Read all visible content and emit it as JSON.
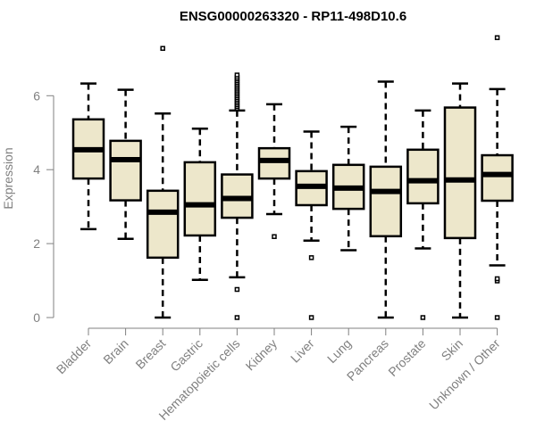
{
  "chart_data": {
    "type": "box",
    "title": "ENSG00000263320 - RP11-498D10.6",
    "xlabel": "",
    "ylabel": "Expression",
    "ylim": [
      0,
      7.6
    ],
    "yticks": [
      "0",
      "2",
      "4",
      "6"
    ],
    "box_fill": "#EDE7CB",
    "categories": [
      "Bladder",
      "Brain",
      "Breast",
      "Gastric",
      "Hematopoietic cells",
      "Kidney",
      "Liver",
      "Lung",
      "Pancreas",
      "Prostate",
      "Skin",
      "Unknown / Other"
    ],
    "boxes": [
      {
        "min": 2.39,
        "q1": 3.76,
        "median": 4.54,
        "q3": 5.36,
        "max": 6.33,
        "outliers": []
      },
      {
        "min": 2.13,
        "q1": 3.17,
        "median": 4.27,
        "q3": 4.78,
        "max": 6.16,
        "outliers": []
      },
      {
        "min": 0,
        "q1": 1.62,
        "median": 2.85,
        "q3": 3.43,
        "max": 5.52,
        "outliers": [
          7.28
        ]
      },
      {
        "min": 1.02,
        "q1": 2.22,
        "median": 3.05,
        "q3": 4.2,
        "max": 5.11,
        "outliers": []
      },
      {
        "min": 1.09,
        "q1": 2.7,
        "median": 3.22,
        "q3": 3.87,
        "max": 5.6,
        "outliers": [
          0,
          0.76,
          5.65,
          5.7,
          5.75,
          5.8,
          5.85,
          5.9,
          5.95,
          6.0,
          6.05,
          6.1,
          6.15,
          6.2,
          6.25,
          6.3,
          6.35,
          6.4,
          6.45,
          6.5,
          6.56
        ]
      },
      {
        "min": 2.8,
        "q1": 3.76,
        "median": 4.25,
        "q3": 4.58,
        "max": 5.77,
        "outliers": [
          2.19
        ]
      },
      {
        "min": 2.08,
        "q1": 3.04,
        "median": 3.55,
        "q3": 3.96,
        "max": 5.03,
        "outliers": [
          0,
          1.62
        ]
      },
      {
        "min": 1.82,
        "q1": 2.94,
        "median": 3.5,
        "q3": 4.13,
        "max": 5.16,
        "outliers": []
      },
      {
        "min": 0,
        "q1": 2.2,
        "median": 3.41,
        "q3": 4.08,
        "max": 6.38,
        "outliers": []
      },
      {
        "min": 1.87,
        "q1": 3.09,
        "median": 3.7,
        "q3": 4.54,
        "max": 5.6,
        "outliers": [
          0
        ]
      },
      {
        "min": 0,
        "q1": 2.15,
        "median": 3.72,
        "q3": 5.68,
        "max": 6.33,
        "outliers": []
      },
      {
        "min": 1.41,
        "q1": 3.16,
        "median": 3.87,
        "q3": 4.39,
        "max": 6.18,
        "outliers": [
          0,
          0.99,
          1.05,
          7.57
        ]
      }
    ]
  }
}
